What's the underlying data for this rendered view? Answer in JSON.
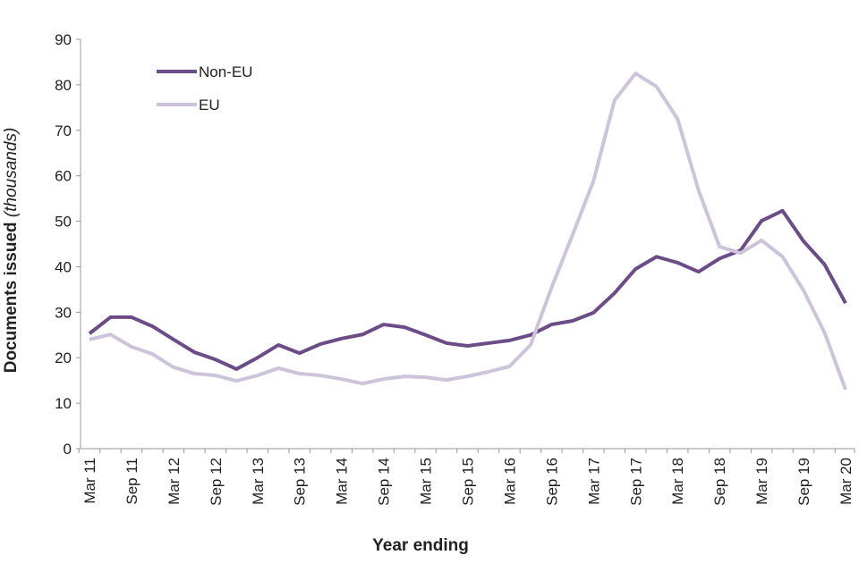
{
  "chart_data": {
    "type": "line",
    "x_label": "Year ending",
    "y_label": "Documents issued",
    "y_label_unit": "(thousands)",
    "categories": [
      "Mar 11",
      null,
      "Sep 11",
      null,
      "Mar 12",
      null,
      "Sep 12",
      null,
      "Mar 13",
      null,
      "Sep 13",
      null,
      "Mar 14",
      null,
      "Sep 14",
      null,
      "Mar 15",
      null,
      "Sep 15",
      null,
      "Mar 16",
      null,
      "Sep 16",
      null,
      "Mar 17",
      null,
      "Sep 17",
      null,
      "Mar 18",
      null,
      "Sep 18",
      null,
      "Mar 19",
      null,
      "Sep 19",
      null,
      "Mar 20"
    ],
    "series": [
      {
        "name": "Non-EU",
        "color": "#6b4c87",
        "values": [
          25.3,
          28.9,
          28.9,
          26.9,
          24,
          21.2,
          19.6,
          17.5,
          20,
          22.8,
          21,
          23,
          24.2,
          25.1,
          27.3,
          26.7,
          25,
          23.2,
          22.6,
          23.2,
          23.8,
          25,
          27.3,
          28.1,
          29.9,
          34.2,
          39.5,
          42.2,
          40.9,
          38.9,
          41.8,
          43.6,
          50.1,
          52.3,
          45.6,
          40.5,
          32
        ]
      },
      {
        "name": "EU",
        "color": "#cdc3da",
        "values": [
          24,
          25.1,
          22.4,
          20.8,
          17.9,
          16.5,
          16.1,
          14.9,
          16.1,
          17.7,
          16.5,
          16.1,
          15.3,
          14.3,
          15.3,
          15.9,
          15.7,
          15.1,
          15.9,
          16.9,
          18.1,
          22.8,
          35.4,
          47,
          58.9,
          76.6,
          82.5,
          79.6,
          72.5,
          56.8,
          44.4,
          43,
          45.8,
          42.2,
          34.8,
          25.5,
          13
        ]
      }
    ],
    "ylim": [
      0,
      90
    ],
    "yticks": [
      0,
      10,
      20,
      30,
      40,
      50,
      60,
      70,
      80,
      90
    ],
    "grid": false,
    "legend": "top-left"
  }
}
